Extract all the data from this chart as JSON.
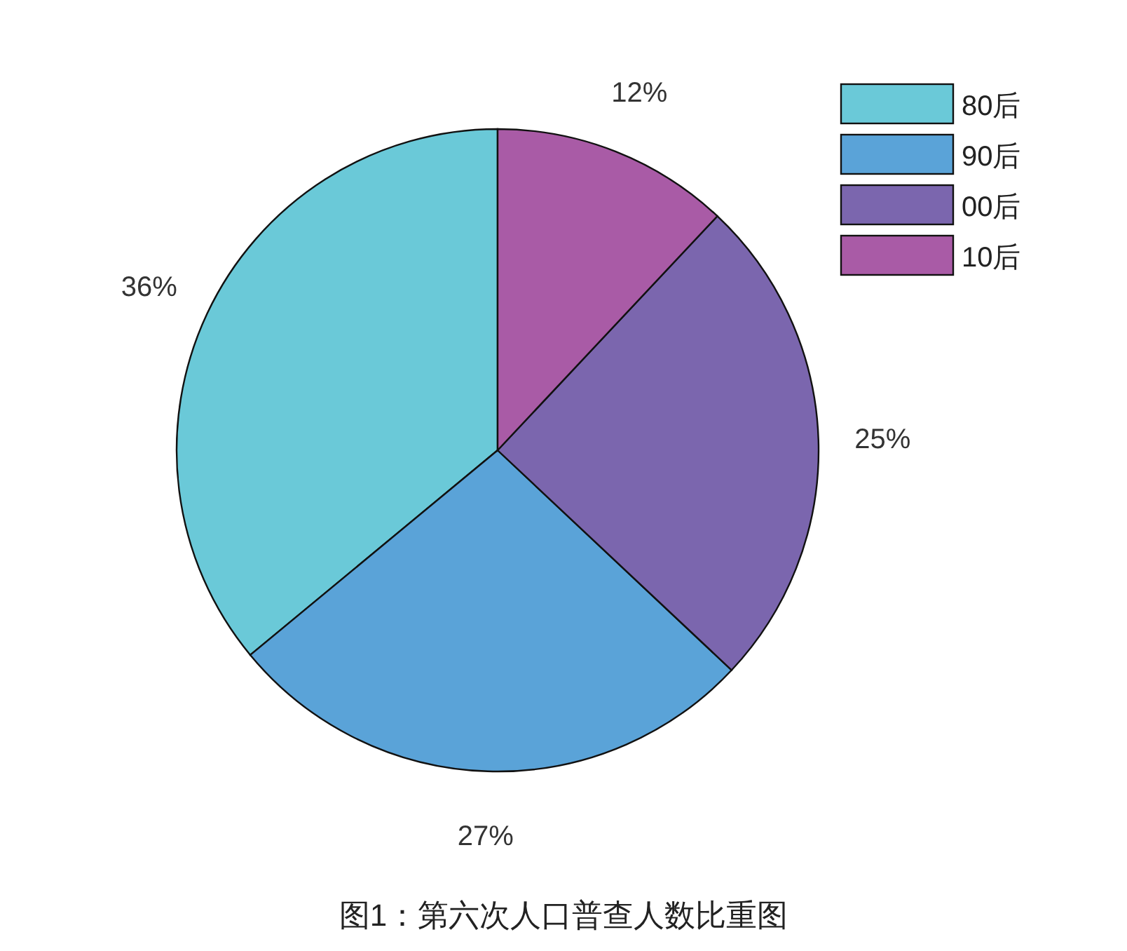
{
  "chart_data": {
    "type": "pie",
    "title": "图1：第六次人口普查人数比重图",
    "categories": [
      "80后",
      "90后",
      "00后",
      "10后"
    ],
    "values": [
      36,
      27,
      25,
      12
    ],
    "colors": [
      "#6ac9d8",
      "#5aa3d8",
      "#7b66ae",
      "#a95ba6"
    ],
    "value_labels": [
      "36%",
      "27%",
      "25%",
      "12%"
    ],
    "legend": "top right"
  }
}
